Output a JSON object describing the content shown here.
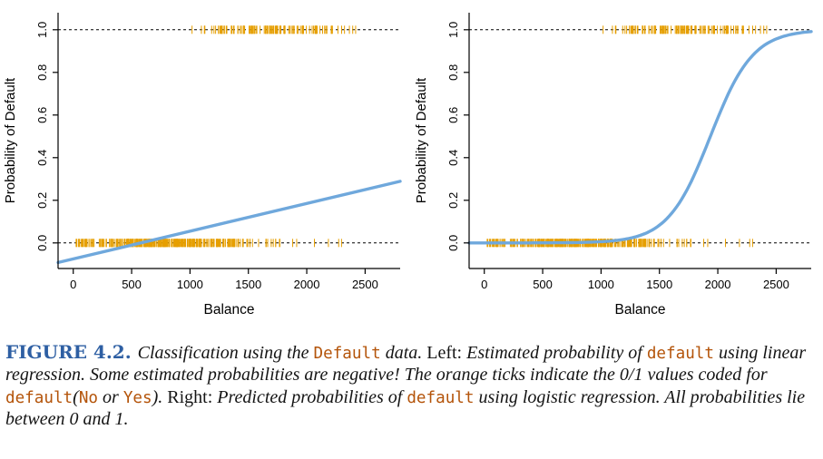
{
  "colors": {
    "line": "#6FA8DC",
    "rug": "#E69F00",
    "figure_label": "#2E5FA3",
    "keyword": "#B4540A",
    "reference_line": "#000000"
  },
  "rug": {
    "seed": 7,
    "tick_halflen": 4.5,
    "groups": [
      {
        "name": "default-no",
        "y": 0,
        "count": 340,
        "mean": 810,
        "sd": 455,
        "min": 0,
        "max": 2390
      },
      {
        "name": "default-yes",
        "y": 1,
        "count": 120,
        "mean": 1740,
        "sd": 345,
        "min": 555,
        "max": 2465
      }
    ]
  },
  "chart_data": [
    {
      "type": "line",
      "name": "linear-regression-panel",
      "title": "",
      "xlabel": "Balance",
      "ylabel": "Probability of Default",
      "xlim": [
        -130,
        2800
      ],
      "ylim": [
        -0.12,
        1.08
      ],
      "xticks": [
        0,
        500,
        1000,
        1500,
        2000,
        2500
      ],
      "yticks": [
        0.0,
        0.2,
        0.4,
        0.6,
        0.8,
        1.0
      ],
      "hlines": [
        0,
        1
      ],
      "grid": false,
      "legend": "none",
      "curve": {
        "model": "linear",
        "intercept": -0.0752,
        "slope": 0.00013
      }
    },
    {
      "type": "line",
      "name": "logistic-regression-panel",
      "title": "",
      "xlabel": "Balance",
      "ylabel": "Probability of Default",
      "xlim": [
        -130,
        2800
      ],
      "ylim": [
        -0.12,
        1.08
      ],
      "xticks": [
        0,
        500,
        1000,
        1500,
        2000,
        2500
      ],
      "yticks": [
        0.0,
        0.2,
        0.4,
        0.6,
        0.8,
        1.0
      ],
      "hlines": [
        0,
        1
      ],
      "grid": false,
      "legend": "none",
      "curve": {
        "model": "logistic",
        "b0": -10.6513,
        "b1": 0.0055
      }
    }
  ],
  "caption": {
    "segments": [
      {
        "style": "fig",
        "text": "FIGURE 4.2. "
      },
      {
        "style": "it",
        "text": "Classification using the "
      },
      {
        "style": "mono",
        "text": "Default"
      },
      {
        "style": "it",
        "text": " data. "
      },
      {
        "style": "rm",
        "text": "Left: "
      },
      {
        "style": "it",
        "text": "Estimated probability of "
      },
      {
        "style": "mono",
        "text": "default"
      },
      {
        "style": "it",
        "text": " using linear regression. Some estimated probabilities are negative! The orange ticks indicate the 0/1 values coded for "
      },
      {
        "style": "mono",
        "text": "default"
      },
      {
        "style": "it",
        "text": "("
      },
      {
        "style": "mono",
        "text": "No"
      },
      {
        "style": "it",
        "text": " or "
      },
      {
        "style": "mono",
        "text": "Yes"
      },
      {
        "style": "it",
        "text": "). "
      },
      {
        "style": "rm",
        "text": "Right: "
      },
      {
        "style": "it",
        "text": "Predicted probabilities of "
      },
      {
        "style": "mono",
        "text": "default"
      },
      {
        "style": "it",
        "text": " using logistic regression. All probabilities lie between 0 and 1."
      }
    ]
  }
}
